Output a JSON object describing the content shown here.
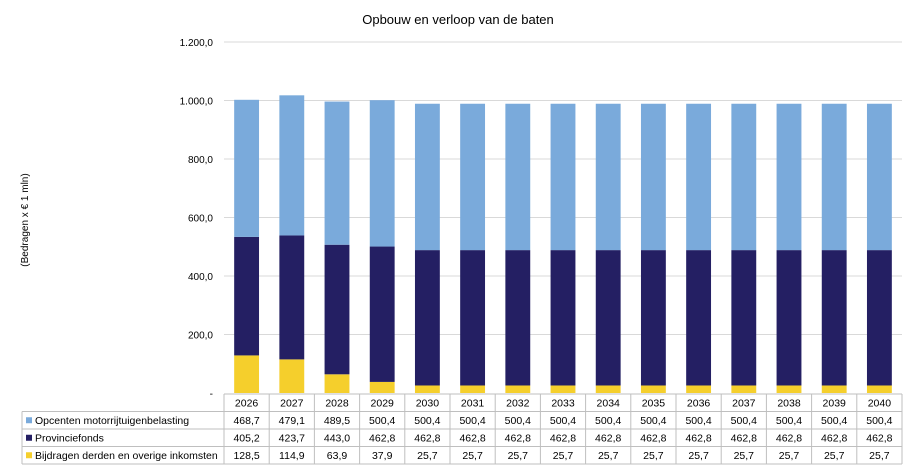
{
  "chart_data": {
    "type": "bar",
    "stacked": true,
    "title": "Opbouw  en verloop  van  de baten",
    "ylabel": "(Bedragen x € 1 mln)",
    "xlabel": "",
    "ylim": [
      0,
      1200
    ],
    "yticks": [
      "-",
      "200,0",
      "400,0",
      "600,0",
      "800,0",
      "1.000,0",
      "1.200,0"
    ],
    "grid": true,
    "legend": "data-table-left",
    "categories": [
      "2026",
      "2027",
      "2028",
      "2029",
      "2030",
      "2031",
      "2032",
      "2033",
      "2034",
      "2035",
      "2036",
      "2037",
      "2038",
      "2039",
      "2040"
    ],
    "series": [
      {
        "name": "Bijdragen derden en overige inkomsten",
        "color": "#f5cf2c",
        "values": [
          128.5,
          114.9,
          63.9,
          37.9,
          25.7,
          25.7,
          25.7,
          25.7,
          25.7,
          25.7,
          25.7,
          25.7,
          25.7,
          25.7,
          25.7
        ],
        "labels": [
          "128,5",
          "114,9",
          "63,9",
          "37,9",
          "25,7",
          "25,7",
          "25,7",
          "25,7",
          "25,7",
          "25,7",
          "25,7",
          "25,7",
          "25,7",
          "25,7",
          "25,7"
        ]
      },
      {
        "name": "Provinciefonds",
        "color": "#241f63",
        "values": [
          405.2,
          423.7,
          443.0,
          462.8,
          462.8,
          462.8,
          462.8,
          462.8,
          462.8,
          462.8,
          462.8,
          462.8,
          462.8,
          462.8,
          462.8
        ],
        "labels": [
          "405,2",
          "423,7",
          "443,0",
          "462,8",
          "462,8",
          "462,8",
          "462,8",
          "462,8",
          "462,8",
          "462,8",
          "462,8",
          "462,8",
          "462,8",
          "462,8",
          "462,8"
        ]
      },
      {
        "name": "Opcenten motorrijtuigenbelasting",
        "color": "#7aaadb",
        "values": [
          468.7,
          479.1,
          489.5,
          500.4,
          500.4,
          500.4,
          500.4,
          500.4,
          500.4,
          500.4,
          500.4,
          500.4,
          500.4,
          500.4,
          500.4
        ],
        "labels": [
          "468,7",
          "479,1",
          "489,5",
          "500,4",
          "500,4",
          "500,4",
          "500,4",
          "500,4",
          "500,4",
          "500,4",
          "500,4",
          "500,4",
          "500,4",
          "500,4",
          "500,4"
        ]
      }
    ],
    "table_row_order": [
      "Opcenten motorrijtuigenbelasting",
      "Provinciefonds",
      "Bijdragen derden en overige inkomsten"
    ]
  }
}
